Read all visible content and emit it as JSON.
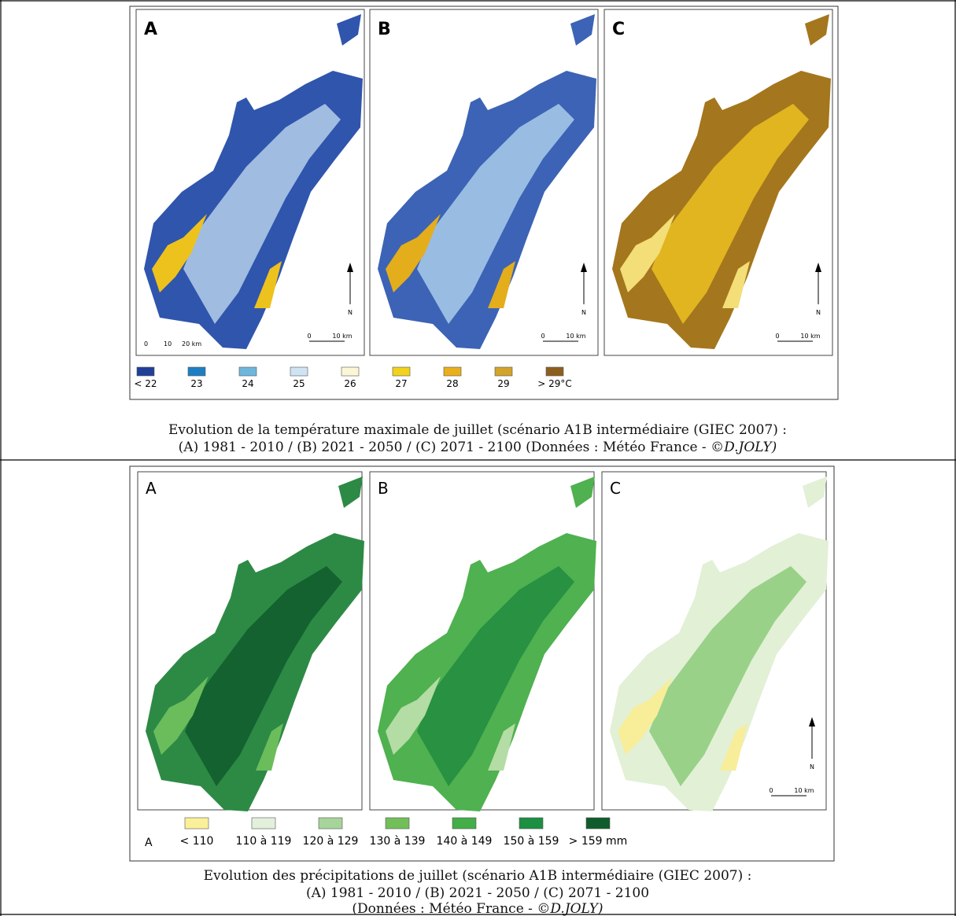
{
  "figures": [
    {
      "panels": [
        {
          "label": "A",
          "north": "N",
          "scale": [
            "0",
            "10 km"
          ],
          "scale_extra": [
            "0",
            "10",
            "20 km"
          ]
        },
        {
          "label": "B",
          "north": "N",
          "scale": [
            "0",
            "10 km"
          ]
        },
        {
          "label": "C",
          "north": "N",
          "scale": [
            "0",
            "10 km"
          ]
        }
      ],
      "legend": [
        {
          "label": "< 22",
          "color": "#1f3f98"
        },
        {
          "label": "23",
          "color": "#1e7ec4"
        },
        {
          "label": "24",
          "color": "#6fb6dd"
        },
        {
          "label": "25",
          "color": "#cfe3f3"
        },
        {
          "label": "26",
          "color": "#fbf6d6"
        },
        {
          "label": "27",
          "color": "#f2d21c"
        },
        {
          "label": "28",
          "color": "#e9b01b"
        },
        {
          "label": "29",
          "color": "#d3a32a"
        },
        {
          "label": "> 29°C",
          "color": "#8d5f1f"
        }
      ],
      "caption": [
        "Evolution de la température maximale de juillet (scénario A1B intermédiaire (GIEC 2007) :",
        "(A) 1981 - 2010 / (B) 2021 - 2050 / (C) 2071 - 2100 (Données : Météo France - ",
        "©D.JOLY)"
      ]
    },
    {
      "panels": [
        {
          "label": "A"
        },
        {
          "label": "B"
        },
        {
          "label": "C",
          "north": "N",
          "scale": [
            "0",
            "10 km"
          ]
        }
      ],
      "legend_title": "A",
      "legend": [
        {
          "label": "< 110",
          "color": "#fbf09a"
        },
        {
          "label": "110 à 119",
          "color": "#e3f1dc"
        },
        {
          "label": "120 à 129",
          "color": "#a7d49a"
        },
        {
          "label": "130 à 139",
          "color": "#72bf5a"
        },
        {
          "label": "140 à 149",
          "color": "#43ad48"
        },
        {
          "label": "150 à 159",
          "color": "#1c9042"
        },
        {
          "label": "> 159 mm",
          "color": "#105c2c"
        }
      ],
      "caption": [
        "Evolution des précipitations de juillet (scénario A1B intermédiaire (GIEC 2007) :",
        "(A) 1981 - 2010 / (B) 2021 - 2050 / (C) 2071 - 2100",
        "(Données : Météo France - ",
        "©D.JOLY)"
      ]
    }
  ]
}
